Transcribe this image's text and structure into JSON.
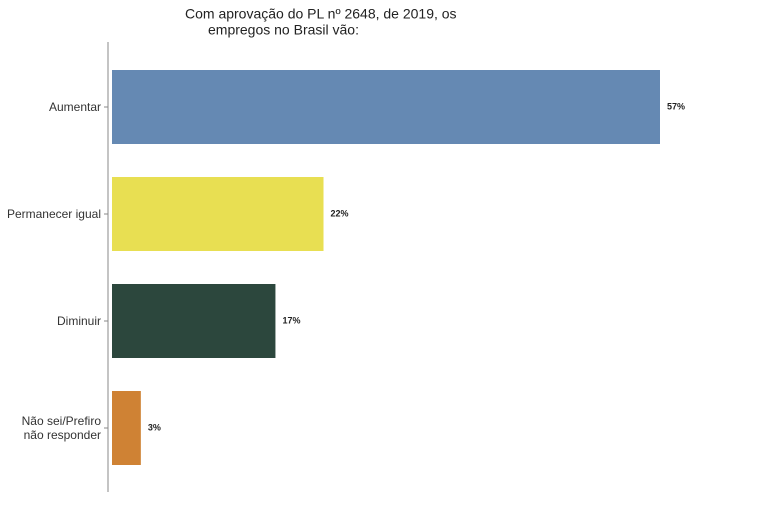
{
  "chart_data": {
    "type": "bar",
    "orientation": "horizontal",
    "title": [
      "Com aprovação do PL nº 2648, de 2019, os",
      "empregos no Brasil vão:"
    ],
    "categories": [
      "Aumentar",
      "Permanecer igual",
      "Diminuir",
      "Não sei/Prefiro não responder"
    ],
    "values": [
      57,
      22,
      17,
      3
    ],
    "value_labels": [
      "57%",
      "22%",
      "17%",
      "3%"
    ],
    "colors": [
      "#6589b3",
      "#e8df52",
      "#2c473d",
      "#cf8234"
    ]
  }
}
